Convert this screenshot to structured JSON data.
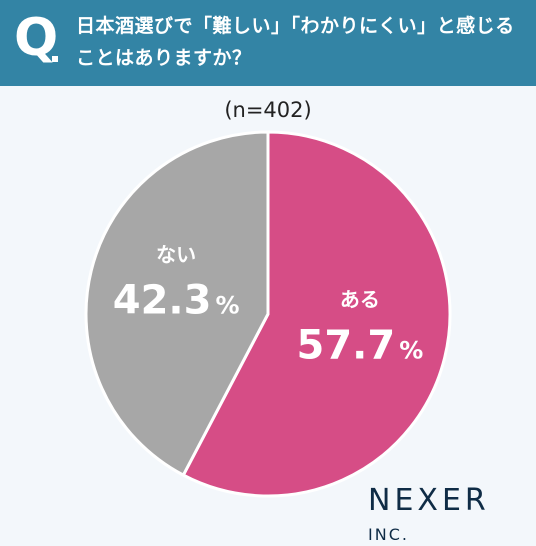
{
  "header": {
    "q_letter": "Q",
    "question_line1": "日本酒選びで「難しい」「わかりにくい」と感じる",
    "question_line2": "ことはありますか？"
  },
  "sample_label": "(n=402)",
  "brand": {
    "name": "NEXER",
    "suffix": "INC."
  },
  "colors": {
    "header_bg": "#3384a5",
    "yes": "#d64d86",
    "no": "#a7a7a7"
  },
  "chart_data": {
    "type": "pie",
    "slices": [
      {
        "label": "ある",
        "value": 57.7,
        "display": "57.7",
        "unit": "%",
        "color": "#d64d86"
      },
      {
        "label": "ない",
        "value": 42.3,
        "display": "42.3",
        "unit": "%",
        "color": "#a7a7a7"
      }
    ]
  }
}
